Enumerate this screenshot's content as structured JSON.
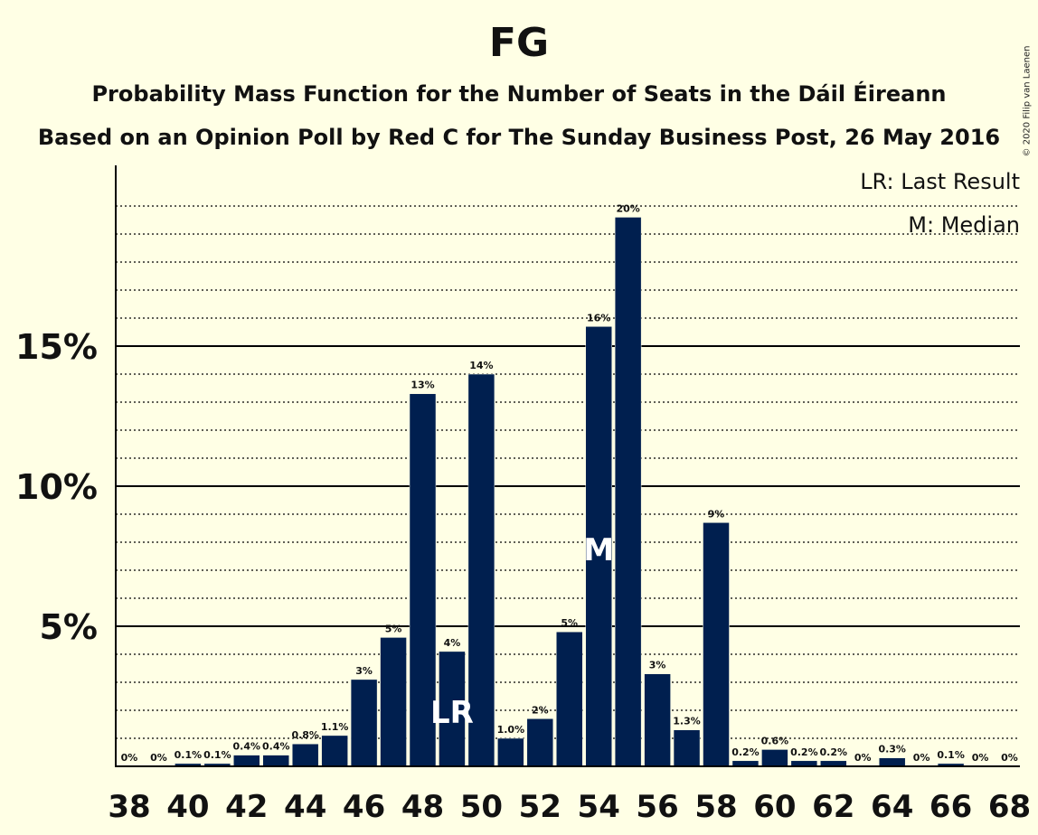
{
  "title": "FG",
  "subtitle1": "Probability Mass Function for the Number of Seats in the Dáil Éireann",
  "subtitle2": "Based on an Opinion Poll by Red C for The Sunday Business Post, 26 May 2016",
  "copyright": "© 2020 Filip van Laenen",
  "legend": {
    "last_result": "LR: Last Result",
    "median": "M: Median"
  },
  "colors": {
    "bar": "#001f4f",
    "background": "#ffffe5",
    "axis": "#000000"
  },
  "chart_data": {
    "type": "bar",
    "categories": [
      38,
      39,
      40,
      41,
      42,
      43,
      44,
      45,
      46,
      47,
      48,
      49,
      50,
      51,
      52,
      53,
      54,
      55,
      56,
      57,
      58,
      59,
      60,
      61,
      62,
      63,
      64,
      65,
      66,
      67,
      68
    ],
    "values": [
      0,
      0,
      0.1,
      0.1,
      0.4,
      0.4,
      0.8,
      1.1,
      3.1,
      4.6,
      13.3,
      4.1,
      14.0,
      1.0,
      1.7,
      4.8,
      15.7,
      19.6,
      3.3,
      1.3,
      8.7,
      0.2,
      0.6,
      0.2,
      0.2,
      0,
      0.3,
      0,
      0.1,
      0,
      0
    ],
    "data_labels": [
      "0%",
      "0%",
      "0.1%",
      "0.1%",
      "0.4%",
      "0.4%",
      "0.8%",
      "1.1%",
      "3%",
      "5%",
      "13%",
      "4%",
      "14%",
      "1.0%",
      "2%",
      "5%",
      "16%",
      "20%",
      "3%",
      "1.3%",
      "9%",
      "0.2%",
      "0.6%",
      "0.2%",
      "0.2%",
      "0%",
      "0.3%",
      "0%",
      "0.1%",
      "0%",
      "0%"
    ],
    "x_tick_labels": [
      "38",
      "40",
      "42",
      "44",
      "46",
      "48",
      "50",
      "52",
      "54",
      "56",
      "58",
      "60",
      "62",
      "64",
      "66",
      "68"
    ],
    "y_ticks": [
      5,
      10,
      15
    ],
    "y_tick_labels": [
      "5%",
      "10%",
      "15%"
    ],
    "ylim": [
      0,
      21.5
    ],
    "minor_grid_step": 1,
    "last_result_seat": 49,
    "last_result_label": "LR",
    "median_seat": 54,
    "median_label": "M"
  }
}
